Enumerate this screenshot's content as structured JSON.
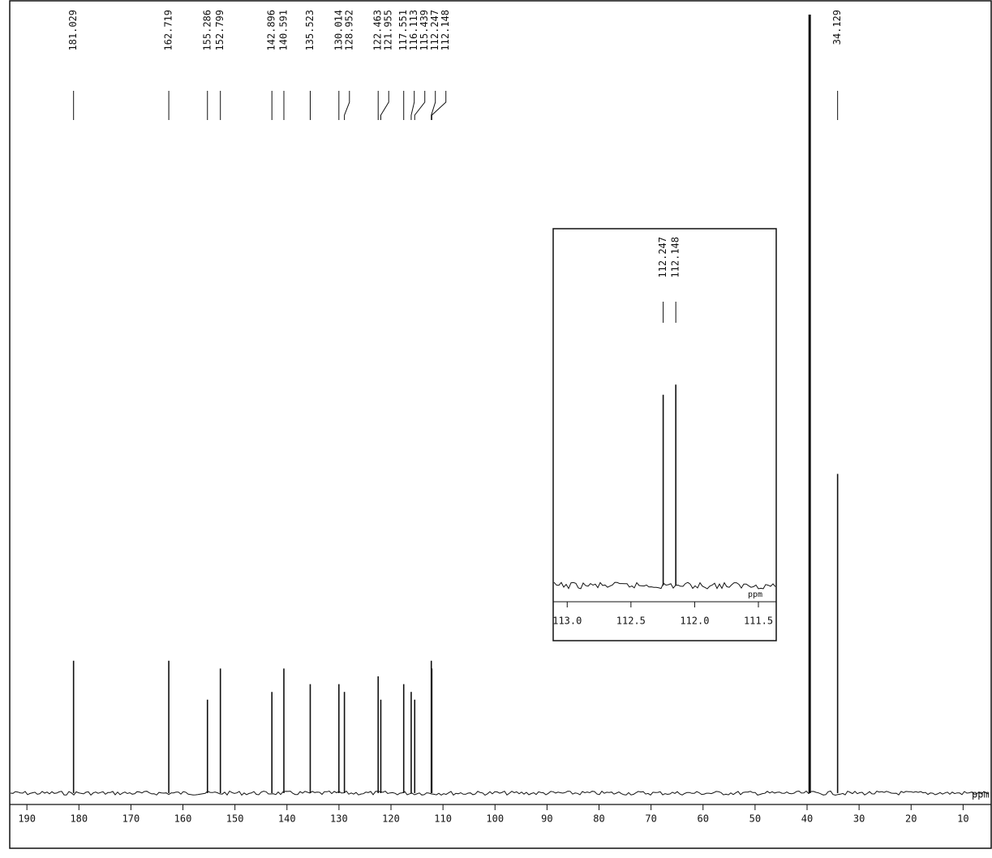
{
  "chart_data": [
    {
      "type": "spectrum",
      "x_label": "ppm",
      "xlim": [
        193.3,
        4.6
      ],
      "ylim": [
        0,
        100
      ],
      "xticks": [
        190,
        180,
        170,
        160,
        150,
        140,
        130,
        120,
        110,
        100,
        90,
        80,
        70,
        60,
        50,
        40,
        30,
        20,
        10
      ],
      "peaks": {
        "x": [
          181.029,
          162.719,
          155.286,
          152.799,
          142.896,
          140.591,
          135.523,
          130.014,
          128.952,
          122.463,
          121.955,
          117.551,
          116.113,
          115.439,
          112.247,
          112.148,
          34.129
        ],
        "values": [
          17,
          17,
          12,
          16,
          13,
          16,
          14,
          14,
          13,
          15,
          12,
          14,
          13,
          12,
          17,
          16,
          41
        ]
      },
      "solvent_peak": {
        "x": 39.5,
        "value": 100
      }
    },
    {
      "type": "spectrum",
      "x_label": "ppm",
      "xlim": [
        113.11,
        111.36
      ],
      "ylim": [
        0,
        100
      ],
      "xticks": [
        {
          "value": 113,
          "label": "113.0"
        },
        {
          "value": 112.5,
          "label": "112.5"
        },
        {
          "value": 112,
          "label": "112.0"
        },
        {
          "value": 111.5,
          "label": "111.5"
        }
      ],
      "peaks": {
        "x": [
          112.247,
          112.148
        ],
        "values": [
          56,
          59
        ]
      }
    }
  ]
}
